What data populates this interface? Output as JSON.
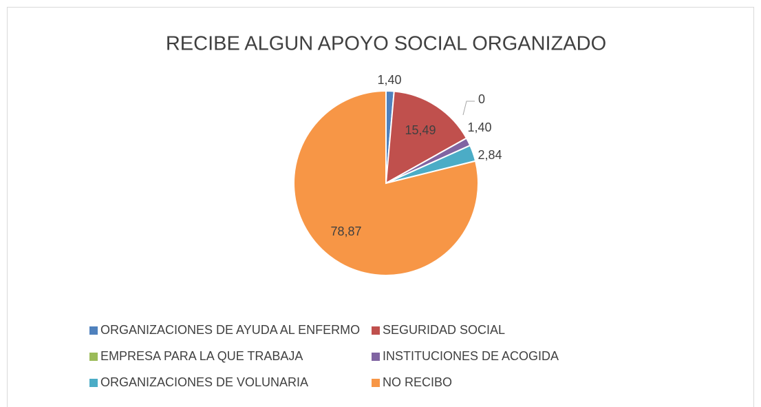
{
  "chart_data": {
    "type": "pie",
    "title": "RECIBE ALGUN APOYO SOCIAL ORGANIZADO",
    "categories": [
      "ORGANIZACIONES DE AYUDA AL ENFERMO",
      "SEGURIDAD SOCIAL",
      "EMPRESA PARA LA QUE TRABAJA",
      "INSTITUCIONES DE ACOGIDA",
      "ORGANIZACIONES DE VOLUNARIA",
      "NO RECIBO"
    ],
    "values": [
      1.4,
      15.49,
      0,
      1.4,
      2.84,
      78.87
    ],
    "value_labels": [
      "1,40",
      "15,49",
      "0",
      "1,40",
      "2,84",
      "78,87"
    ],
    "colors": [
      "#4f81bd",
      "#c0504d",
      "#9bbb59",
      "#8064a2",
      "#4bacc6",
      "#f79646"
    ],
    "legend": "bottom"
  }
}
